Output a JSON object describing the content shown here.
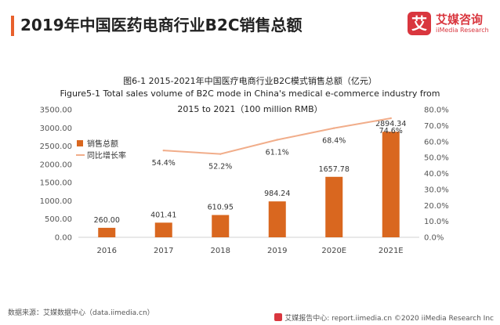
{
  "header": {
    "title": "2019年中国医药电商行业B2C销售总额",
    "brand_logo_char": "艾",
    "brand_name": "艾媒咨询",
    "brand_en": "iiMedia Research"
  },
  "footer": {
    "source": "数据来源：艾媒数据中心（data.iimedia.cn）",
    "right": "艾媒报告中心: report.iimedia.cn ©2020 iiMedia Research Inc"
  },
  "colors": {
    "bar": "#d9671f",
    "line": "#f1ad8a",
    "accent": "#e8602c",
    "brand": "#d9363e"
  },
  "chart_data": {
    "type": "bar",
    "title": "图6-1 2015-2021年中国医疗电商行业B2C模式销售总额（亿元）",
    "subtitle_line1": "Figure5-1 Total sales volume of B2C mode in China's medical e-commerce industry from",
    "subtitle_line2": "2015 to 2021（100 million RMB）",
    "categories": [
      "2016",
      "2017",
      "2018",
      "2019",
      "2020E",
      "2021E"
    ],
    "series": [
      {
        "name": "销售总额",
        "type": "bar",
        "axis": "left",
        "values": [
          260.0,
          401.41,
          610.95,
          984.24,
          1657.78,
          2894.34
        ],
        "labels": [
          "260.00",
          "401.41",
          "610.95",
          "984.24",
          "1657.78",
          "2894.34"
        ]
      },
      {
        "name": "同比增长率",
        "type": "line",
        "axis": "right",
        "values": [
          null,
          54.4,
          52.2,
          61.1,
          68.4,
          74.6
        ],
        "labels": [
          "",
          "54.4%",
          "52.2%",
          "61.1%",
          "68.4%",
          "74.6%"
        ]
      }
    ],
    "ylim_left": [
      0,
      3500
    ],
    "yticks_left": [
      "0.00",
      "500.00",
      "1000.00",
      "1500.00",
      "2000.00",
      "2500.00",
      "3000.00",
      "3500.00"
    ],
    "ylim_right": [
      0,
      80
    ],
    "yticks_right": [
      "0.0%",
      "10.0%",
      "20.0%",
      "30.0%",
      "40.0%",
      "50.0%",
      "60.0%",
      "70.0%",
      "80.0%"
    ],
    "legend_position": "top-left"
  }
}
